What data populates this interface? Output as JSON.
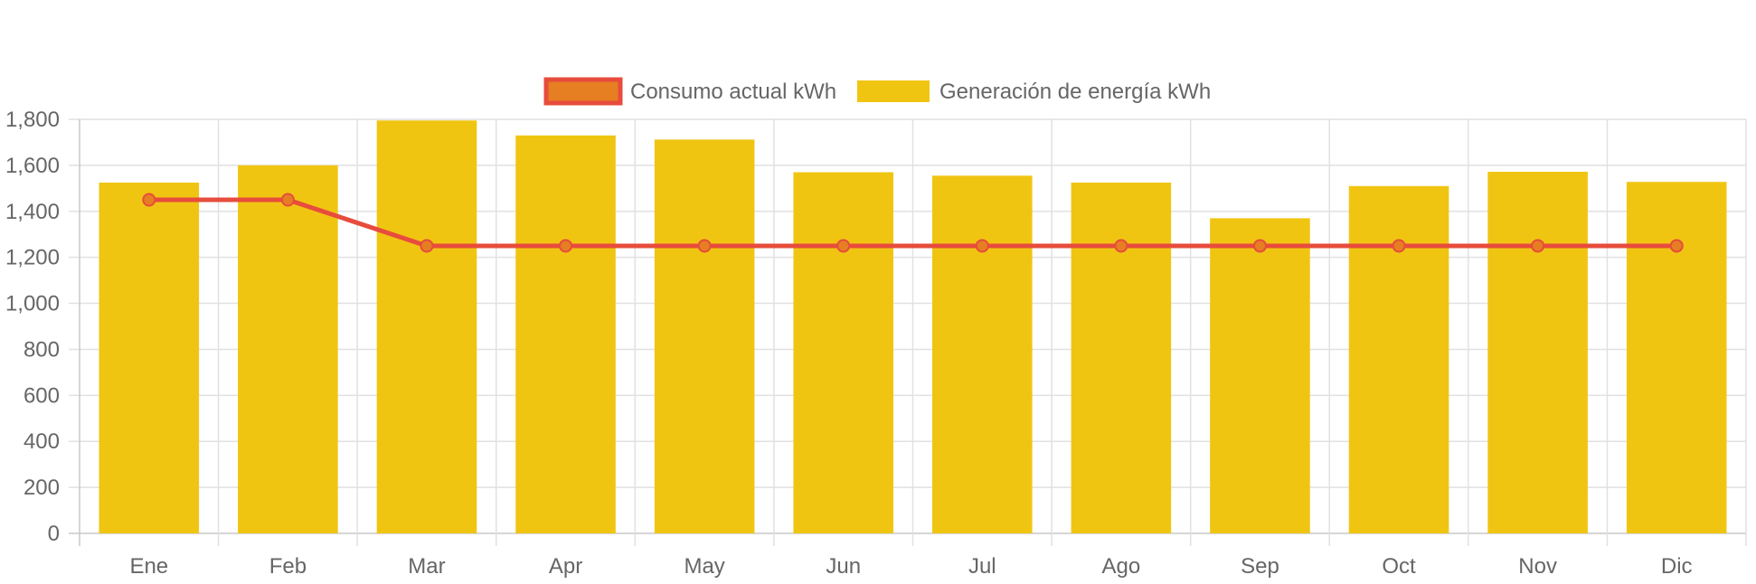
{
  "chart_data": {
    "type": "bar",
    "categories": [
      "Ene",
      "Feb",
      "Mar",
      "Apr",
      "May",
      "Jun",
      "Jul",
      "Ago",
      "Sep",
      "Oct",
      "Nov",
      "Dic"
    ],
    "series": [
      {
        "name": "Generación de energía kWh",
        "type": "bar",
        "color": "#f0c512",
        "values": [
          1525,
          1600,
          1795,
          1730,
          1712,
          1570,
          1555,
          1525,
          1370,
          1510,
          1572,
          1528
        ]
      },
      {
        "name": "Consumo actual kWh",
        "type": "line",
        "color": "#e74c3c",
        "fill": "#e67e22",
        "values": [
          1450,
          1450,
          1250,
          1250,
          1250,
          1250,
          1250,
          1250,
          1250,
          1250,
          1250,
          1250
        ]
      }
    ],
    "ylim": [
      0,
      1800
    ],
    "yticks": [
      "0",
      "200",
      "400",
      "600",
      "800",
      "1,000",
      "1,200",
      "1,400",
      "1,600",
      "1,800"
    ],
    "grid": true,
    "legend_position": "top"
  }
}
